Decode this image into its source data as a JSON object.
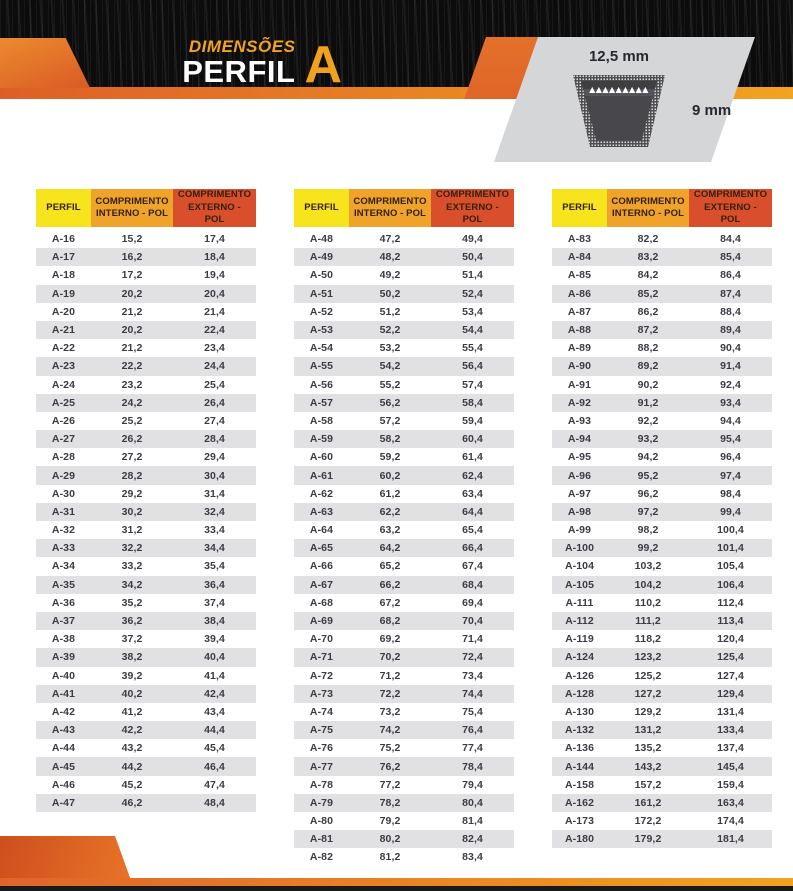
{
  "header": {
    "subtitle": "DIMENSÕES",
    "title": "PERFIL",
    "profile_letter": "A",
    "accent_yellow": "#F2A31F",
    "accent_orange": "#DD5F27"
  },
  "diagram": {
    "top_width_label": "12,5 mm",
    "side_height_label": "9 mm",
    "cords_glyphs": "▲▲▲▲▲▲▲▲▲"
  },
  "table_headers": {
    "perfil": "PERFIL",
    "interno": "COMPRIMENTO INTERNO - POL",
    "externo": "COMPRIMENTO EXTERNO - POL"
  },
  "header_colors": {
    "perfil_bg": "#F8E41D",
    "interno_bg": "#EFA32A",
    "externo_bg": "#DA4F2B"
  },
  "tables": [
    {
      "rows": [
        [
          "A-16",
          "15,2",
          "17,4"
        ],
        [
          "A-17",
          "16,2",
          "18,4"
        ],
        [
          "A-18",
          "17,2",
          "19,4"
        ],
        [
          "A-19",
          "20,2",
          "20,4"
        ],
        [
          "A-20",
          "21,2",
          "21,4"
        ],
        [
          "A-21",
          "20,2",
          "22,4"
        ],
        [
          "A-22",
          "21,2",
          "23,4"
        ],
        [
          "A-23",
          "22,2",
          "24,4"
        ],
        [
          "A-24",
          "23,2",
          "25,4"
        ],
        [
          "A-25",
          "24,2",
          "26,4"
        ],
        [
          "A-26",
          "25,2",
          "27,4"
        ],
        [
          "A-27",
          "26,2",
          "28,4"
        ],
        [
          "A-28",
          "27,2",
          "29,4"
        ],
        [
          "A-29",
          "28,2",
          "30,4"
        ],
        [
          "A-30",
          "29,2",
          "31,4"
        ],
        [
          "A-31",
          "30,2",
          "32,4"
        ],
        [
          "A-32",
          "31,2",
          "33,4"
        ],
        [
          "A-33",
          "32,2",
          "34,4"
        ],
        [
          "A-34",
          "33,2",
          "35,4"
        ],
        [
          "A-35",
          "34,2",
          "36,4"
        ],
        [
          "A-36",
          "35,2",
          "37,4"
        ],
        [
          "A-37",
          "36,2",
          "38,4"
        ],
        [
          "A-38",
          "37,2",
          "39,4"
        ],
        [
          "A-39",
          "38,2",
          "40,4"
        ],
        [
          "A-40",
          "39,2",
          "41,4"
        ],
        [
          "A-41",
          "40,2",
          "42,4"
        ],
        [
          "A-42",
          "41,2",
          "43,4"
        ],
        [
          "A-43",
          "42,2",
          "44,4"
        ],
        [
          "A-44",
          "43,2",
          "45,4"
        ],
        [
          "A-45",
          "44,2",
          "46,4"
        ],
        [
          "A-46",
          "45,2",
          "47,4"
        ],
        [
          "A-47",
          "46,2",
          "48,4"
        ]
      ]
    },
    {
      "rows": [
        [
          "A-48",
          "47,2",
          "49,4"
        ],
        [
          "A-49",
          "48,2",
          "50,4"
        ],
        [
          "A-50",
          "49,2",
          "51,4"
        ],
        [
          "A-51",
          "50,2",
          "52,4"
        ],
        [
          "A-52",
          "51,2",
          "53,4"
        ],
        [
          "A-53",
          "52,2",
          "54,4"
        ],
        [
          "A-54",
          "53,2",
          "55,4"
        ],
        [
          "A-55",
          "54,2",
          "56,4"
        ],
        [
          "A-56",
          "55,2",
          "57,4"
        ],
        [
          "A-57",
          "56,2",
          "58,4"
        ],
        [
          "A-58",
          "57,2",
          "59,4"
        ],
        [
          "A-59",
          "58,2",
          "60,4"
        ],
        [
          "A-60",
          "59,2",
          "61,4"
        ],
        [
          "A-61",
          "60,2",
          "62,4"
        ],
        [
          "A-62",
          "61,2",
          "63,4"
        ],
        [
          "A-63",
          "62,2",
          "64,4"
        ],
        [
          "A-64",
          "63,2",
          "65,4"
        ],
        [
          "A-65",
          "64,2",
          "66,4"
        ],
        [
          "A-66",
          "65,2",
          "67,4"
        ],
        [
          "A-67",
          "66,2",
          "68,4"
        ],
        [
          "A-68",
          "67,2",
          "69,4"
        ],
        [
          "A-69",
          "68,2",
          "70,4"
        ],
        [
          "A-70",
          "69,2",
          "71,4"
        ],
        [
          "A-71",
          "70,2",
          "72,4"
        ],
        [
          "A-72",
          "71,2",
          "73,4"
        ],
        [
          "A-73",
          "72,2",
          "74,4"
        ],
        [
          "A-74",
          "73,2",
          "75,4"
        ],
        [
          "A-75",
          "74,2",
          "76,4"
        ],
        [
          "A-76",
          "75,2",
          "77,4"
        ],
        [
          "A-77",
          "76,2",
          "78,4"
        ],
        [
          "A-78",
          "77,2",
          "79,4"
        ],
        [
          "A-79",
          "78,2",
          "80,4"
        ],
        [
          "A-80",
          "79,2",
          "81,4"
        ],
        [
          "A-81",
          "80,2",
          "82,4"
        ],
        [
          "A-82",
          "81,2",
          "83,4"
        ]
      ]
    },
    {
      "rows": [
        [
          "A-83",
          "82,2",
          "84,4"
        ],
        [
          "A-84",
          "83,2",
          "85,4"
        ],
        [
          "A-85",
          "84,2",
          "86,4"
        ],
        [
          "A-86",
          "85,2",
          "87,4"
        ],
        [
          "A-87",
          "86,2",
          "88,4"
        ],
        [
          "A-88",
          "87,2",
          "89,4"
        ],
        [
          "A-89",
          "88,2",
          "90,4"
        ],
        [
          "A-90",
          "89,2",
          "91,4"
        ],
        [
          "A-91",
          "90,2",
          "92,4"
        ],
        [
          "A-92",
          "91,2",
          "93,4"
        ],
        [
          "A-93",
          "92,2",
          "94,4"
        ],
        [
          "A-94",
          "93,2",
          "95,4"
        ],
        [
          "A-95",
          "94,2",
          "96,4"
        ],
        [
          "A-96",
          "95,2",
          "97,4"
        ],
        [
          "A-97",
          "96,2",
          "98,4"
        ],
        [
          "A-98",
          "97,2",
          "99,4"
        ],
        [
          "A-99",
          "98,2",
          "100,4"
        ],
        [
          "A-100",
          "99,2",
          "101,4"
        ],
        [
          "A-104",
          "103,2",
          "105,4"
        ],
        [
          "A-105",
          "104,2",
          "106,4"
        ],
        [
          "A-111",
          "110,2",
          "112,4"
        ],
        [
          "A-112",
          "111,2",
          "113,4"
        ],
        [
          "A-119",
          "118,2",
          "120,4"
        ],
        [
          "A-124",
          "123,2",
          "125,4"
        ],
        [
          "A-126",
          "125,2",
          "127,4"
        ],
        [
          "A-128",
          "127,2",
          "129,4"
        ],
        [
          "A-130",
          "129,2",
          "131,4"
        ],
        [
          "A-132",
          "131,2",
          "133,4"
        ],
        [
          "A-136",
          "135,2",
          "137,4"
        ],
        [
          "A-144",
          "143,2",
          "145,4"
        ],
        [
          "A-158",
          "157,2",
          "159,4"
        ],
        [
          "A-162",
          "161,2",
          "163,4"
        ],
        [
          "A-173",
          "172,2",
          "174,4"
        ],
        [
          "A-180",
          "179,2",
          "181,4"
        ]
      ]
    }
  ]
}
